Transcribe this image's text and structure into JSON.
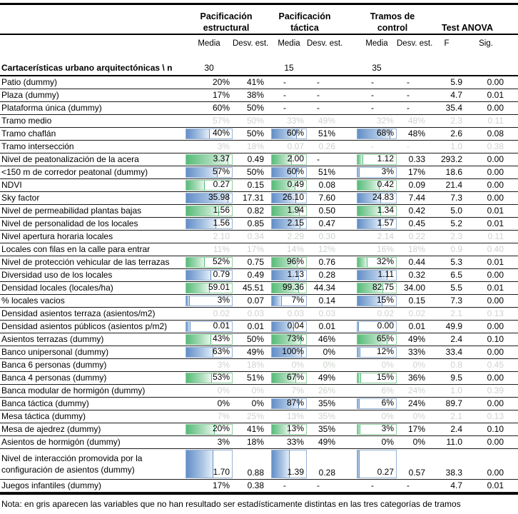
{
  "header": {
    "groups": [
      {
        "line1": "Pacificación",
        "line2": "estructural"
      },
      {
        "line1": "Pacificación",
        "line2": "táctica"
      },
      {
        "line1": "Tramos de",
        "line2": "control"
      },
      {
        "line1": "",
        "line2": "Test ANOVA"
      }
    ],
    "subheaders": [
      "Media",
      "Desv. est.",
      "Media",
      "Desv. est.",
      "Media",
      "Desv. est.",
      "F",
      "Sig."
    ]
  },
  "section": {
    "label": "Cartacerísticas urbano arquitectónicas \\ n",
    "n1": "30",
    "n2": "15",
    "n3": "35"
  },
  "colors": {
    "bar_blue": "#638ec6",
    "bar_blue_border": "#95b3d7",
    "bar_green": "#57bb79",
    "bar_green_border": "#8fce9e",
    "gray_text": "#cdd3cd"
  },
  "rows": [
    {
      "label": "Patio (dummy)",
      "gray": false,
      "barColor": null,
      "cells": [
        [
          "20%",
          null
        ],
        [
          "41%",
          null
        ],
        [
          "-",
          null
        ],
        [
          "-",
          null
        ],
        [
          "-",
          null
        ],
        [
          "-",
          null
        ],
        [
          "5.9",
          null
        ],
        [
          "0.00",
          null
        ]
      ]
    },
    {
      "label": "Plaza (dummy)",
      "gray": false,
      "barColor": null,
      "cells": [
        [
          "17%",
          null
        ],
        [
          "38%",
          null
        ],
        [
          "-",
          null
        ],
        [
          "-",
          null
        ],
        [
          "-",
          null
        ],
        [
          "-",
          null
        ],
        [
          "4.7",
          null
        ],
        [
          "0.01",
          null
        ]
      ]
    },
    {
      "label": "Plataforma única (dummy)",
      "gray": false,
      "barColor": null,
      "cells": [
        [
          "60%",
          null
        ],
        [
          "50%",
          null
        ],
        [
          "-",
          null
        ],
        [
          "-",
          null
        ],
        [
          "-",
          null
        ],
        [
          "-",
          null
        ],
        [
          "35.4",
          null
        ],
        [
          "0.00",
          null
        ]
      ]
    },
    {
      "label": "Tramo medio",
      "gray": true,
      "barColor": null,
      "cells": [
        [
          "57%",
          null
        ],
        [
          "50%",
          null
        ],
        [
          "33%",
          null
        ],
        [
          "49%",
          null
        ],
        [
          "32%",
          null
        ],
        [
          "48%",
          null
        ],
        [
          "2.3",
          null
        ],
        [
          "0.11",
          null
        ]
      ]
    },
    {
      "label": "Tramo chaflán",
      "gray": false,
      "barColor": "blue",
      "cells": [
        [
          "40%",
          52
        ],
        [
          "50%",
          null
        ],
        [
          "60%",
          72
        ],
        [
          "51%",
          null
        ],
        [
          "68%",
          86
        ],
        [
          "48%",
          null
        ],
        [
          "2.6",
          null
        ],
        [
          "0.08",
          null
        ]
      ]
    },
    {
      "label": "Tramo intersección",
      "gray": true,
      "barColor": null,
      "cells": [
        [
          "3%",
          null
        ],
        [
          "18%",
          null
        ],
        [
          "0.07",
          null
        ],
        [
          "0.26",
          null
        ],
        [
          "-",
          null
        ],
        [
          "-",
          null
        ],
        [
          "1.0",
          null
        ],
        [
          "0.38",
          null
        ]
      ]
    },
    {
      "label": "Nivel de peatonalización de la acera",
      "gray": false,
      "barColor": "green",
      "cells": [
        [
          "3.37",
          92
        ],
        [
          "0.49",
          null
        ],
        [
          "2.00",
          58
        ],
        [
          "-",
          null
        ],
        [
          "1.12",
          15
        ],
        [
          "0.33",
          null
        ],
        [
          "293.2",
          null
        ],
        [
          "0.00",
          null
        ]
      ]
    },
    {
      "label": "<150 m de corredor peatonal (dummy)",
      "gray": false,
      "barColor": "blue",
      "cells": [
        [
          "57%",
          68
        ],
        [
          "50%",
          null
        ],
        [
          "60%",
          72
        ],
        [
          "51%",
          null
        ],
        [
          "3%",
          5
        ],
        [
          "17%",
          null
        ],
        [
          "18.6",
          null
        ],
        [
          "0.00",
          null
        ]
      ]
    },
    {
      "label": "NDVI",
      "gray": false,
      "barColor": "green",
      "cells": [
        [
          "0.27",
          40
        ],
        [
          "0.15",
          null
        ],
        [
          "0.49",
          68
        ],
        [
          "0.08",
          null
        ],
        [
          "0.42",
          58
        ],
        [
          "0.09",
          null
        ],
        [
          "21.4",
          null
        ],
        [
          "0.00",
          null
        ]
      ]
    },
    {
      "label": "Sky factor",
      "gray": false,
      "barColor": "blue",
      "cells": [
        [
          "35.98",
          92
        ],
        [
          "17.31",
          null
        ],
        [
          "26.10",
          70
        ],
        [
          "7.60",
          null
        ],
        [
          "24.83",
          62
        ],
        [
          "7.44",
          null
        ],
        [
          "7.3",
          null
        ],
        [
          "0.00",
          null
        ]
      ]
    },
    {
      "label": "Nivel de permeabilidad plantas bajas",
      "gray": false,
      "barColor": "green",
      "cells": [
        [
          "1.56",
          72
        ],
        [
          "0.82",
          null
        ],
        [
          "1.94",
          82
        ],
        [
          "0.50",
          null
        ],
        [
          "1.34",
          62
        ],
        [
          "0.42",
          null
        ],
        [
          "5.0",
          null
        ],
        [
          "0.01",
          null
        ]
      ]
    },
    {
      "label": "Nivel de personalidad de los locales",
      "gray": false,
      "barColor": "blue",
      "cells": [
        [
          "1.56",
          66
        ],
        [
          "0.85",
          null
        ],
        [
          "2.15",
          84
        ],
        [
          "0.47",
          null
        ],
        [
          "1.57",
          62
        ],
        [
          "0.45",
          null
        ],
        [
          "5.2",
          null
        ],
        [
          "0.01",
          null
        ]
      ]
    },
    {
      "label": "Nivel apertura horaria locales",
      "gray": true,
      "barColor": null,
      "cells": [
        [
          "2.10",
          null
        ],
        [
          "0.34",
          null
        ],
        [
          "2.29",
          null
        ],
        [
          "0.30",
          null
        ],
        [
          "2.14",
          null
        ],
        [
          "0.22",
          null
        ],
        [
          "2.3",
          null
        ],
        [
          "0.11",
          null
        ]
      ]
    },
    {
      "label": "Locales con filas en la calle para entrar",
      "gray": true,
      "barColor": null,
      "cells": [
        [
          "11%",
          null
        ],
        [
          "17%",
          null
        ],
        [
          "14%",
          null
        ],
        [
          "12%",
          null
        ],
        [
          "16%",
          null
        ],
        [
          "18%",
          null
        ],
        [
          "0.9",
          null
        ],
        [
          "0.40",
          null
        ]
      ]
    },
    {
      "label": "Nivel de protección vehicular de las terrazas",
      "gray": false,
      "barColor": "green",
      "cells": [
        [
          "52%",
          40
        ],
        [
          "0.75",
          null
        ],
        [
          "96%",
          75
        ],
        [
          "0.76",
          null
        ],
        [
          "32%",
          25
        ],
        [
          "0.44",
          null
        ],
        [
          "5.3",
          null
        ],
        [
          "0.01",
          null
        ]
      ]
    },
    {
      "label": "Diversidad uso de los locales",
      "gray": false,
      "barColor": "blue",
      "cells": [
        [
          "0.79",
          55
        ],
        [
          "0.49",
          null
        ],
        [
          "1.13",
          80
        ],
        [
          "0.28",
          null
        ],
        [
          "1.11",
          78
        ],
        [
          "0.32",
          null
        ],
        [
          "6.5",
          null
        ],
        [
          "0.00",
          null
        ]
      ]
    },
    {
      "label": "Densidad locales (locales/ha)",
      "gray": false,
      "barColor": "green",
      "cells": [
        [
          "59.01",
          52
        ],
        [
          "45.51",
          null
        ],
        [
          "99.36",
          80
        ],
        [
          "44.34",
          null
        ],
        [
          "82.75",
          66
        ],
        [
          "34.00",
          null
        ],
        [
          "5.5",
          null
        ],
        [
          "0.01",
          null
        ]
      ]
    },
    {
      "label": "% locales vacios",
      "gray": false,
      "barColor": "blue",
      "cells": [
        [
          "3%",
          8
        ],
        [
          "0.07",
          null
        ],
        [
          "7%",
          30
        ],
        [
          "0.14",
          null
        ],
        [
          "15%",
          65
        ],
        [
          "0.15",
          null
        ],
        [
          "7.3",
          null
        ],
        [
          "0.00",
          null
        ]
      ]
    },
    {
      "label": "Densidad asientos terraza (asientos/m2)",
      "gray": true,
      "barColor": null,
      "cells": [
        [
          "0.02",
          null
        ],
        [
          "0.03",
          null
        ],
        [
          "0.03",
          null
        ],
        [
          "0.03",
          null
        ],
        [
          "0.02",
          null
        ],
        [
          "0.02",
          null
        ],
        [
          "2.1",
          null
        ],
        [
          "0.13",
          null
        ]
      ]
    },
    {
      "label": "Densidad asientos públicos (asientos p/m2)",
      "gray": false,
      "barColor": "blue",
      "cells": [
        [
          "0.01",
          10
        ],
        [
          "0.01",
          null
        ],
        [
          "0.04",
          65
        ],
        [
          "0.01",
          null
        ],
        [
          "0.00",
          4
        ],
        [
          "0.01",
          null
        ],
        [
          "49.9",
          null
        ],
        [
          "0.00",
          null
        ]
      ]
    },
    {
      "label": "Asientos terrazas (dummy)",
      "gray": false,
      "barColor": "green",
      "cells": [
        [
          "43%",
          55
        ],
        [
          "50%",
          null
        ],
        [
          "73%",
          85
        ],
        [
          "46%",
          null
        ],
        [
          "65%",
          78
        ],
        [
          "49%",
          null
        ],
        [
          "2.4",
          null
        ],
        [
          "0.10",
          null
        ]
      ]
    },
    {
      "label": "Banco unipersonal (dummy)",
      "gray": false,
      "barColor": "blue",
      "cells": [
        [
          "63%",
          60
        ],
        [
          "49%",
          null
        ],
        [
          "100%",
          88
        ],
        [
          "0%",
          null
        ],
        [
          "12%",
          8
        ],
        [
          "33%",
          null
        ],
        [
          "33.4",
          null
        ],
        [
          "0.00",
          null
        ]
      ]
    },
    {
      "label": "Banca 6 personas (dummy)",
      "gray": true,
      "barColor": null,
      "cells": [
        [
          "3%",
          null
        ],
        [
          "18%",
          null
        ],
        [
          "0%",
          null
        ],
        [
          "0%",
          null
        ],
        [
          "0%",
          null
        ],
        [
          "0%",
          null
        ],
        [
          "0.8",
          null
        ],
        [
          "0.45",
          null
        ]
      ]
    },
    {
      "label": "Banca 4 personas (dummy)",
      "gray": false,
      "barColor": "green",
      "cells": [
        [
          "53%",
          56
        ],
        [
          "51%",
          null
        ],
        [
          "67%",
          70
        ],
        [
          "49%",
          null
        ],
        [
          "15%",
          10
        ],
        [
          "36%",
          null
        ],
        [
          "9.5",
          null
        ],
        [
          "0.00",
          null
        ]
      ]
    },
    {
      "label": "Banca modular de hormigón  (dummy)",
      "gray": true,
      "barColor": null,
      "cells": [
        [
          "0%",
          null
        ],
        [
          "0%",
          null
        ],
        [
          "7%",
          null
        ],
        [
          "26%",
          null
        ],
        [
          "6%",
          null
        ],
        [
          "24%",
          null
        ],
        [
          "1.0",
          null
        ],
        [
          "0.39",
          null
        ]
      ]
    },
    {
      "label": "Banca táctica (dummy)",
      "gray": false,
      "barColor": "blue",
      "cells": [
        [
          "0%",
          null
        ],
        [
          "0%",
          null
        ],
        [
          "87%",
          80
        ],
        [
          "35%",
          null
        ],
        [
          "6%",
          6
        ],
        [
          "24%",
          null
        ],
        [
          "89.7",
          null
        ],
        [
          "0.00",
          null
        ]
      ]
    },
    {
      "label": "Mesa táctica (dummy)",
      "gray": true,
      "barColor": null,
      "cells": [
        [
          "7%",
          null
        ],
        [
          "25%",
          null
        ],
        [
          "13%",
          null
        ],
        [
          "35%",
          null
        ],
        [
          "0%",
          null
        ],
        [
          "0%",
          null
        ],
        [
          "2.1",
          null
        ],
        [
          "0.13",
          null
        ]
      ]
    },
    {
      "label": "Mesa de ajedrez (dummy)",
      "gray": false,
      "barColor": "green",
      "cells": [
        [
          "20%",
          62
        ],
        [
          "41%",
          null
        ],
        [
          "13%",
          52
        ],
        [
          "35%",
          null
        ],
        [
          "3%",
          8
        ],
        [
          "17%",
          null
        ],
        [
          "2.4",
          null
        ],
        [
          "0.10",
          null
        ]
      ]
    },
    {
      "label": "Asientos de hormigón (dummy)",
      "gray": false,
      "barColor": null,
      "cells": [
        [
          "3%",
          null
        ],
        [
          "18%",
          null
        ],
        [
          "33%",
          null
        ],
        [
          "49%",
          null
        ],
        [
          "0%",
          null
        ],
        [
          "0%",
          null
        ],
        [
          "11.0",
          null
        ],
        [
          "0.00",
          null
        ]
      ]
    },
    {
      "label": "Nivel de interacción promovida por la configuración de asientos  (dummy)",
      "gray": false,
      "barColor": "blue",
      "tall": true,
      "cells": [
        [
          "1.70",
          60
        ],
        [
          "0.88",
          null
        ],
        [
          "1.39",
          52
        ],
        [
          "0.28",
          null
        ],
        [
          "0.27",
          6
        ],
        [
          "0.57",
          null
        ],
        [
          "38.3",
          null
        ],
        [
          "0.00",
          null
        ]
      ]
    },
    {
      "label": "Juegos infantiles (dummy)",
      "gray": false,
      "barColor": null,
      "cells": [
        [
          "17%",
          null
        ],
        [
          "0.38",
          null
        ],
        [
          "-",
          null
        ],
        [
          "-",
          null
        ],
        [
          "-",
          null
        ],
        [
          "-",
          null
        ],
        [
          "4.7",
          null
        ],
        [
          "0.01",
          null
        ]
      ]
    }
  ],
  "note": "Nota: en gris aparecen las variables que no han resultado ser estadísticamente distintas en las tres categorías de tramos"
}
